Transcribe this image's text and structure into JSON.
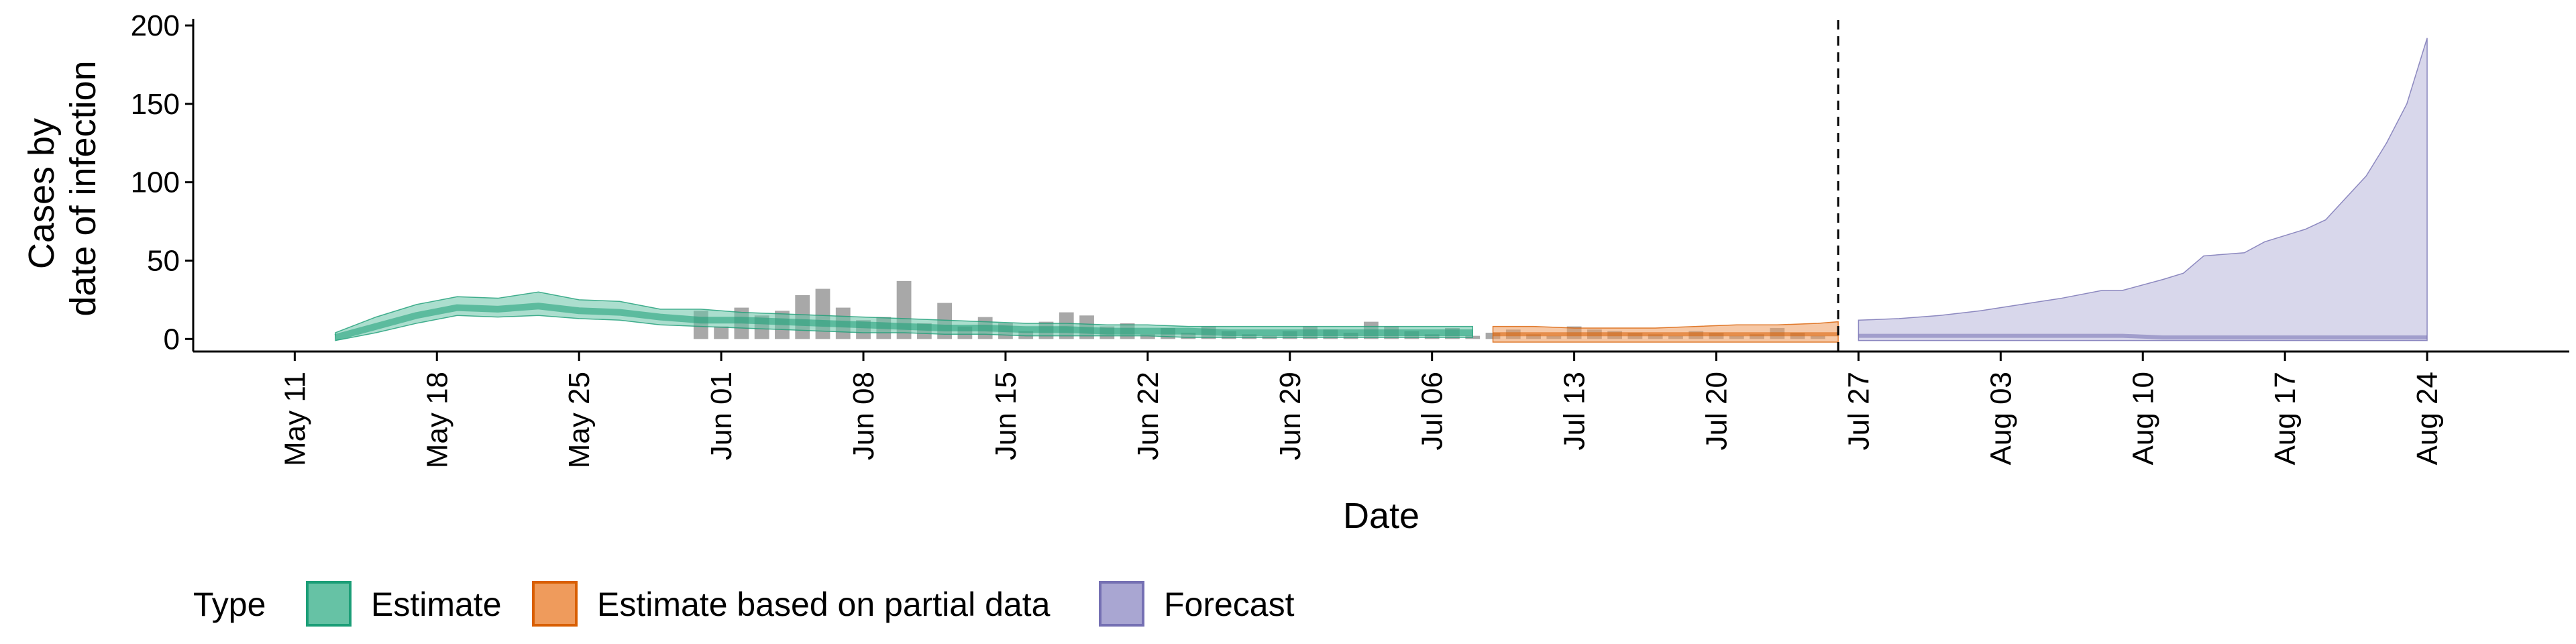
{
  "chart_data": {
    "type": "area",
    "title": "",
    "xlabel": "Date",
    "ylabel_lines": [
      "Cases by",
      "date of infection"
    ],
    "ylim": [
      -8,
      200
    ],
    "yticks": [
      0,
      50,
      100,
      150,
      200
    ],
    "xlim": [
      "2020-05-06",
      "2020-08-31"
    ],
    "xticks": [
      "2020-05-11",
      "2020-05-18",
      "2020-05-25",
      "2020-06-01",
      "2020-06-08",
      "2020-06-15",
      "2020-06-22",
      "2020-06-29",
      "2020-07-06",
      "2020-07-13",
      "2020-07-20",
      "2020-07-27",
      "2020-08-03",
      "2020-08-10",
      "2020-08-17",
      "2020-08-24"
    ],
    "xtick_labels": [
      "May 11",
      "May 18",
      "May 25",
      "Jun 01",
      "Jun 08",
      "Jun 15",
      "Jun 22",
      "Jun 29",
      "Jul 06",
      "Jul 13",
      "Jul 20",
      "Jul 27",
      "Aug 03",
      "Aug 10",
      "Aug 17",
      "Aug 24"
    ],
    "vline_date": "2020-07-26",
    "grid": false,
    "legend": {
      "title": "Type",
      "position": "bottom",
      "items": [
        {
          "label": "Estimate",
          "fill": "#66c2a5",
          "stroke": "#1b9e77"
        },
        {
          "label": "Estimate based on partial data",
          "fill": "#ef9b5c",
          "stroke": "#d95f02"
        },
        {
          "label": "Forecast",
          "fill": "#a9a6d2",
          "stroke": "#7570b3"
        }
      ]
    },
    "bars": {
      "color": "#a8a8a8",
      "dates": [
        "2020-05-31",
        "2020-06-01",
        "2020-06-02",
        "2020-06-03",
        "2020-06-04",
        "2020-06-05",
        "2020-06-06",
        "2020-06-07",
        "2020-06-08",
        "2020-06-09",
        "2020-06-10",
        "2020-06-11",
        "2020-06-12",
        "2020-06-13",
        "2020-06-14",
        "2020-06-15",
        "2020-06-16",
        "2020-06-17",
        "2020-06-18",
        "2020-06-19",
        "2020-06-20",
        "2020-06-21",
        "2020-06-22",
        "2020-06-23",
        "2020-06-24",
        "2020-06-25",
        "2020-06-26",
        "2020-06-27",
        "2020-06-28",
        "2020-06-29",
        "2020-06-30",
        "2020-07-01",
        "2020-07-02",
        "2020-07-03",
        "2020-07-04",
        "2020-07-05",
        "2020-07-06",
        "2020-07-07",
        "2020-07-08",
        "2020-07-09",
        "2020-07-10",
        "2020-07-11",
        "2020-07-12",
        "2020-07-13",
        "2020-07-14",
        "2020-07-15",
        "2020-07-16",
        "2020-07-17",
        "2020-07-18",
        "2020-07-19",
        "2020-07-20",
        "2020-07-21",
        "2020-07-22",
        "2020-07-23",
        "2020-07-24",
        "2020-07-25"
      ],
      "values": [
        18,
        8,
        20,
        15,
        18,
        28,
        32,
        20,
        12,
        14,
        37,
        10,
        23,
        8,
        14,
        10,
        5,
        11,
        17,
        15,
        8,
        10,
        3,
        7,
        4,
        8,
        5,
        3,
        2,
        5,
        8,
        6,
        4,
        11,
        8,
        5,
        3,
        7,
        2,
        4,
        6,
        3,
        2,
        8,
        6,
        5,
        4,
        3,
        2,
        5,
        4,
        2,
        3,
        7,
        4,
        2
      ]
    },
    "series": [
      {
        "name": "Estimate",
        "dates": [
          "2020-05-13",
          "2020-05-15",
          "2020-05-17",
          "2020-05-19",
          "2020-05-21",
          "2020-05-23",
          "2020-05-25",
          "2020-05-27",
          "2020-05-29",
          "2020-05-31",
          "2020-06-02",
          "2020-06-04",
          "2020-06-06",
          "2020-06-08",
          "2020-06-10",
          "2020-06-12",
          "2020-06-14",
          "2020-06-16",
          "2020-06-18",
          "2020-06-20",
          "2020-06-22",
          "2020-06-24",
          "2020-06-26",
          "2020-06-28",
          "2020-06-30",
          "2020-07-02",
          "2020-07-04",
          "2020-07-06",
          "2020-07-08"
        ],
        "median": [
          1,
          8,
          15,
          20,
          19,
          21,
          18,
          17,
          14,
          12,
          12,
          11,
          10,
          9,
          8,
          7,
          7,
          6,
          6,
          5,
          5,
          5,
          4,
          4,
          4,
          4,
          4,
          4,
          4
        ],
        "lower": [
          -1,
          4,
          10,
          15,
          14,
          15,
          13,
          12,
          9,
          8,
          7,
          6,
          5,
          4,
          4,
          3,
          3,
          2,
          2,
          2,
          2,
          1,
          1,
          1,
          1,
          1,
          1,
          1,
          1
        ],
        "upper": [
          4,
          14,
          22,
          27,
          26,
          30,
          25,
          24,
          19,
          19,
          17,
          16,
          15,
          14,
          13,
          12,
          11,
          10,
          10,
          9,
          9,
          8,
          8,
          8,
          8,
          8,
          8,
          8,
          8
        ]
      },
      {
        "name": "Estimate based on partial data",
        "dates": [
          "2020-07-09",
          "2020-07-11",
          "2020-07-13",
          "2020-07-15",
          "2020-07-17",
          "2020-07-19",
          "2020-07-21",
          "2020-07-23",
          "2020-07-25",
          "2020-07-26"
        ],
        "median": [
          3,
          3,
          3,
          3,
          3,
          3,
          3,
          3,
          3,
          3
        ],
        "lower": [
          -2,
          -2,
          -2,
          -2,
          -2,
          -2,
          -2,
          -2,
          -2,
          -2
        ],
        "upper": [
          8,
          8,
          7,
          7,
          7,
          8,
          9,
          9,
          10,
          11
        ]
      },
      {
        "name": "Forecast",
        "dates": [
          "2020-07-27",
          "2020-07-29",
          "2020-07-31",
          "2020-08-02",
          "2020-08-04",
          "2020-08-06",
          "2020-08-08",
          "2020-08-09",
          "2020-08-11",
          "2020-08-12",
          "2020-08-13",
          "2020-08-15",
          "2020-08-16",
          "2020-08-18",
          "2020-08-19",
          "2020-08-20",
          "2020-08-21",
          "2020-08-22",
          "2020-08-23",
          "2020-08-24"
        ],
        "median": [
          2,
          2,
          2,
          2,
          2,
          2,
          2,
          2,
          1,
          1,
          1,
          1,
          1,
          1,
          1,
          1,
          1,
          1,
          1,
          1
        ],
        "lower": [
          -1,
          -1,
          -1,
          -1,
          -1,
          -1,
          -1,
          -1,
          -1,
          -1,
          -1,
          -1,
          -1,
          -1,
          -1,
          -1,
          -1,
          -1,
          -1,
          -1
        ],
        "upper": [
          12,
          13,
          15,
          18,
          22,
          26,
          31,
          31,
          38,
          42,
          53,
          55,
          62,
          70,
          76,
          90,
          104,
          125,
          150,
          192
        ]
      }
    ]
  }
}
